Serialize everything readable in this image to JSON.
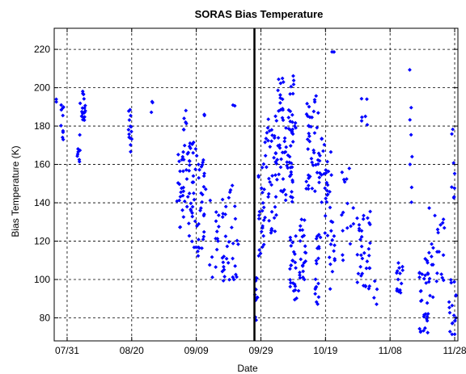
{
  "chart_data": {
    "type": "scatter",
    "title": "SORAS Bias Temperature",
    "xlabel": "Date",
    "ylabel": "Bias Temperature (K)",
    "x_unit": "date",
    "xlim": [
      "2009-07-27",
      "2009-11-29"
    ],
    "ylim": [
      68,
      231
    ],
    "x_ticks": [
      {
        "date": "2009-07-31",
        "label": "07/31"
      },
      {
        "date": "2009-08-20",
        "label": "08/20"
      },
      {
        "date": "2009-09-09",
        "label": "09/09"
      },
      {
        "date": "2009-09-29",
        "label": "09/29"
      },
      {
        "date": "2009-10-19",
        "label": "10/19"
      },
      {
        "date": "2009-11-08",
        "label": "11/08"
      },
      {
        "date": "2009-11-28",
        "label": "11/28"
      }
    ],
    "y_ticks": [
      80,
      100,
      120,
      140,
      160,
      180,
      200,
      220
    ],
    "grid": true,
    "marker_color": "#0000ff",
    "marker": "diamond",
    "reference_line": {
      "x": "2009-09-27"
    },
    "clusters": [
      {
        "start": "2009-07-27",
        "end": "2009-07-28",
        "ymin": 192,
        "ymax": 194,
        "n": 2
      },
      {
        "start": "2009-07-29",
        "end": "2009-07-30",
        "ymin": 168,
        "ymax": 194,
        "n": 10
      },
      {
        "start": "2009-08-03",
        "end": "2009-08-04",
        "ymin": 158,
        "ymax": 178,
        "n": 8
      },
      {
        "start": "2009-08-04",
        "end": "2009-08-06",
        "ymin": 183,
        "ymax": 199,
        "n": 18
      },
      {
        "start": "2009-08-19",
        "end": "2009-08-20",
        "ymin": 157,
        "ymax": 190,
        "n": 14
      },
      {
        "start": "2009-08-26",
        "end": "2009-08-27",
        "ymin": 185,
        "ymax": 194,
        "n": 3
      },
      {
        "start": "2009-09-03",
        "end": "2009-09-06",
        "ymin": 127,
        "ymax": 170,
        "n": 25
      },
      {
        "start": "2009-09-05",
        "end": "2009-09-06",
        "ymin": 176,
        "ymax": 193,
        "n": 6
      },
      {
        "start": "2009-09-06",
        "end": "2009-09-09",
        "ymin": 115,
        "ymax": 172,
        "n": 35
      },
      {
        "start": "2009-09-09",
        "end": "2009-09-12",
        "ymin": 110,
        "ymax": 165,
        "n": 30
      },
      {
        "start": "2009-09-11",
        "end": "2009-09-12",
        "ymin": 184,
        "ymax": 187,
        "n": 2
      },
      {
        "start": "2009-09-13",
        "end": "2009-09-16",
        "ymin": 101,
        "ymax": 142,
        "n": 14
      },
      {
        "start": "2009-09-17",
        "end": "2009-09-22",
        "ymin": 97,
        "ymax": 150,
        "n": 35
      },
      {
        "start": "2009-09-20",
        "end": "2009-09-21",
        "ymin": 189,
        "ymax": 191,
        "n": 2
      },
      {
        "start": "2009-09-27",
        "end": "2009-09-28",
        "ymin": 78,
        "ymax": 104,
        "n": 14
      },
      {
        "start": "2009-09-28",
        "end": "2009-09-30",
        "ymin": 112,
        "ymax": 162,
        "n": 22
      },
      {
        "start": "2009-09-30",
        "end": "2009-10-04",
        "ymin": 124,
        "ymax": 185,
        "n": 35
      },
      {
        "start": "2009-10-03",
        "end": "2009-10-06",
        "ymin": 145,
        "ymax": 205,
        "n": 35
      },
      {
        "start": "2009-10-06",
        "end": "2009-10-09",
        "ymin": 140,
        "ymax": 190,
        "n": 40
      },
      {
        "start": "2009-10-08",
        "end": "2009-10-11",
        "ymin": 88,
        "ymax": 125,
        "n": 25
      },
      {
        "start": "2009-10-08",
        "end": "2009-10-10",
        "ymin": 175,
        "ymax": 212,
        "n": 10
      },
      {
        "start": "2009-10-11",
        "end": "2009-10-13",
        "ymin": 100,
        "ymax": 135,
        "n": 22
      },
      {
        "start": "2009-10-13",
        "end": "2009-10-17",
        "ymin": 145,
        "ymax": 198,
        "n": 40
      },
      {
        "start": "2009-10-15",
        "end": "2009-10-17",
        "ymin": 85,
        "ymax": 125,
        "n": 18
      },
      {
        "start": "2009-10-17",
        "end": "2009-10-21",
        "ymin": 120,
        "ymax": 175,
        "n": 32
      },
      {
        "start": "2009-10-20",
        "end": "2009-10-22",
        "ymin": 95,
        "ymax": 140,
        "n": 14
      },
      {
        "start": "2009-10-21",
        "end": "2009-10-22",
        "ymin": 217,
        "ymax": 219,
        "n": 2
      },
      {
        "start": "2009-10-24",
        "end": "2009-10-28",
        "ymin": 105,
        "ymax": 160,
        "n": 16
      },
      {
        "start": "2009-10-28",
        "end": "2009-11-02",
        "ymin": 93,
        "ymax": 138,
        "n": 35
      },
      {
        "start": "2009-10-30",
        "end": "2009-11-01",
        "ymin": 170,
        "ymax": 216,
        "n": 6
      },
      {
        "start": "2009-11-03",
        "end": "2009-11-04",
        "ymin": 80,
        "ymax": 100,
        "n": 4
      },
      {
        "start": "2009-11-10",
        "end": "2009-11-12",
        "ymin": 93,
        "ymax": 110,
        "n": 14
      },
      {
        "start": "2009-11-14",
        "end": "2009-11-15",
        "ymin": 140,
        "ymax": 216,
        "n": 8
      },
      {
        "start": "2009-11-17",
        "end": "2009-11-20",
        "ymin": 72,
        "ymax": 112,
        "n": 30
      },
      {
        "start": "2009-11-20",
        "end": "2009-11-22",
        "ymin": 90,
        "ymax": 140,
        "n": 12
      },
      {
        "start": "2009-11-22",
        "end": "2009-11-25",
        "ymin": 98,
        "ymax": 132,
        "n": 14
      },
      {
        "start": "2009-11-26",
        "end": "2009-11-29",
        "ymin": 68,
        "ymax": 100,
        "n": 18
      },
      {
        "start": "2009-11-27",
        "end": "2009-11-28",
        "ymin": 140,
        "ymax": 183,
        "n": 8
      }
    ]
  }
}
